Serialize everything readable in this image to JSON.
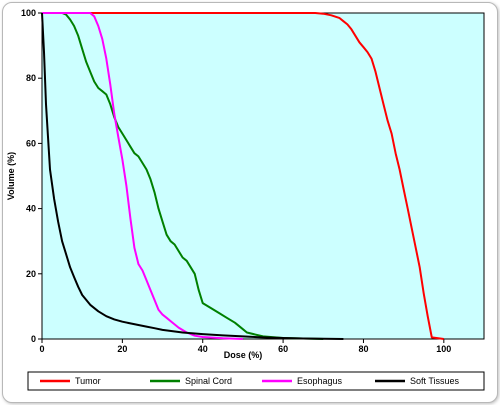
{
  "chart_data": {
    "type": "line",
    "title": "",
    "xlabel": "Dose (%)",
    "ylabel": "Volume (%)",
    "xlim": [
      0,
      110
    ],
    "ylim": [
      0,
      100
    ],
    "x_ticks": [
      0,
      20,
      40,
      60,
      80,
      100
    ],
    "y_ticks": [
      0,
      20,
      40,
      60,
      80,
      100
    ],
    "grid": false,
    "plot_background": "#ccffff",
    "legend_position": "bottom",
    "series": [
      {
        "name": "Tumor",
        "color": "#ff0000",
        "x": [
          0,
          10,
          20,
          40,
          60,
          68,
          70,
          72,
          74,
          75,
          76,
          77,
          78,
          79,
          80,
          81,
          82,
          83,
          84,
          85,
          86,
          87,
          88,
          89,
          90,
          91,
          92,
          93,
          94,
          95,
          96,
          97,
          100
        ],
        "y": [
          100,
          100,
          100,
          100,
          100,
          100,
          99.8,
          99.3,
          98.5,
          97.5,
          96.5,
          95,
          93,
          91,
          89.5,
          88,
          86,
          82,
          77,
          72,
          67,
          63,
          57,
          52,
          46,
          40,
          34,
          28,
          22,
          14,
          7,
          0.5,
          0
        ]
      },
      {
        "name": "Spinal Cord",
        "color": "#008000",
        "x": [
          0,
          5,
          6,
          7,
          8,
          9,
          10,
          11,
          12,
          13,
          14,
          15,
          16,
          17,
          18,
          19,
          20,
          21,
          22,
          23,
          24,
          25,
          26,
          27,
          28,
          29,
          30,
          31,
          32,
          33,
          34,
          35,
          36,
          37,
          38,
          39,
          40,
          42,
          44,
          46,
          48,
          50,
          51,
          55,
          60,
          70
        ],
        "y": [
          100,
          100,
          99.5,
          98,
          96,
          93,
          89,
          85,
          82,
          79,
          77,
          76,
          75,
          72,
          68,
          65,
          63,
          61,
          59,
          57,
          56,
          54,
          52,
          49,
          45,
          40,
          36,
          32,
          30,
          29,
          27,
          25,
          24,
          22,
          20,
          15,
          11,
          9.5,
          8,
          6.5,
          5,
          3,
          2,
          0.8,
          0.3,
          0
        ]
      },
      {
        "name": "Esophagus",
        "color": "#ff00ff",
        "x": [
          0,
          10,
          12,
          13,
          14,
          15,
          16,
          17,
          18,
          19,
          20,
          21,
          22,
          23,
          24,
          25,
          26,
          27,
          28,
          29,
          30,
          31,
          32,
          34,
          36,
          38,
          40,
          45,
          50
        ],
        "y": [
          100,
          100,
          100,
          99,
          96,
          92,
          86,
          78,
          69,
          62,
          55,
          47,
          37,
          28,
          23,
          21,
          18,
          15,
          12,
          9,
          7.5,
          6.5,
          5.5,
          3.5,
          2,
          1,
          0.6,
          0.2,
          0
        ]
      },
      {
        "name": "Soft Tissues",
        "color": "#000000",
        "x": [
          0,
          0.5,
          1,
          1.5,
          2,
          3,
          4,
          5,
          6,
          7,
          8,
          9,
          10,
          12,
          14,
          16,
          18,
          20,
          22,
          24,
          26,
          28,
          30,
          35,
          40,
          45,
          50,
          55,
          60,
          65,
          70,
          75
        ],
        "y": [
          100,
          88,
          72,
          62,
          52,
          43,
          36,
          30,
          26,
          22,
          19,
          16,
          13.5,
          10.5,
          8.5,
          7,
          6,
          5.3,
          4.8,
          4.3,
          3.8,
          3.3,
          2.8,
          2,
          1.5,
          1.1,
          0.8,
          0.5,
          0.3,
          0.15,
          0.05,
          0
        ]
      }
    ]
  }
}
